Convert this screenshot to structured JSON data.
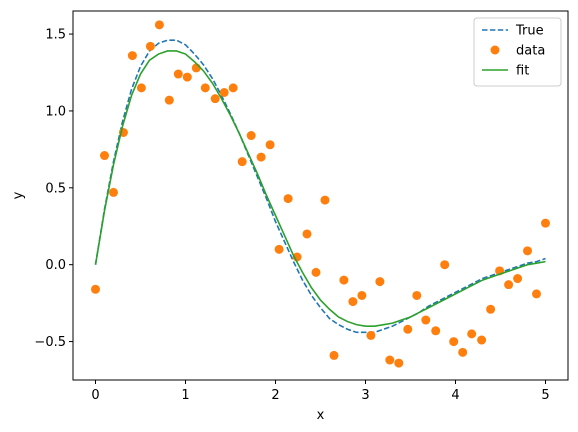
{
  "chart_data": {
    "type": "line",
    "title": "",
    "xlabel": "x",
    "ylabel": "y",
    "xlim": [
      -0.25,
      5.25
    ],
    "ylim": [
      -0.75,
      1.65
    ],
    "xticks": [
      0,
      1,
      2,
      3,
      4,
      5
    ],
    "xtick_labels": [
      "0",
      "1",
      "2",
      "3",
      "4",
      "5"
    ],
    "yticks": [
      -0.5,
      0.0,
      0.5,
      1.0,
      1.5
    ],
    "ytick_labels": [
      "−0.5",
      "0.0",
      "0.5",
      "1.0",
      "1.5"
    ],
    "grid": false,
    "legend_position": "top-right",
    "series": [
      {
        "name": "True",
        "style": "dashed-line",
        "color": "#1f77b4",
        "x": [
          0,
          0.1,
          0.2,
          0.3,
          0.4,
          0.5,
          0.6,
          0.7,
          0.8,
          0.9,
          1.0,
          1.1,
          1.2,
          1.3,
          1.4,
          1.5,
          1.6,
          1.7,
          1.8,
          1.9,
          2.0,
          2.1,
          2.2,
          2.3,
          2.4,
          2.5,
          2.6,
          2.7,
          2.8,
          2.9,
          3.0,
          3.1,
          3.2,
          3.3,
          3.4,
          3.5,
          3.6,
          3.7,
          3.8,
          3.9,
          4.0,
          4.1,
          4.2,
          4.3,
          4.4,
          4.5,
          4.6,
          4.7,
          4.8,
          4.9,
          5.0
        ],
        "y": [
          0.0,
          0.36,
          0.67,
          0.93,
          1.14,
          1.29,
          1.39,
          1.44,
          1.46,
          1.46,
          1.43,
          1.37,
          1.3,
          1.21,
          1.1,
          0.98,
          0.85,
          0.71,
          0.57,
          0.43,
          0.28,
          0.15,
          0.02,
          -0.1,
          -0.2,
          -0.28,
          -0.35,
          -0.39,
          -0.42,
          -0.44,
          -0.44,
          -0.44,
          -0.42,
          -0.4,
          -0.37,
          -0.34,
          -0.31,
          -0.27,
          -0.24,
          -0.21,
          -0.18,
          -0.15,
          -0.12,
          -0.09,
          -0.07,
          -0.05,
          -0.03,
          -0.01,
          0.01,
          0.02,
          0.04
        ]
      },
      {
        "name": "data",
        "style": "scatter",
        "color": "#ff7f0e",
        "x": [
          0.0,
          0.1,
          0.2,
          0.31,
          0.41,
          0.51,
          0.61,
          0.71,
          0.82,
          0.92,
          1.02,
          1.12,
          1.22,
          1.33,
          1.43,
          1.53,
          1.63,
          1.73,
          1.84,
          1.94,
          2.04,
          2.14,
          2.24,
          2.35,
          2.45,
          2.55,
          2.65,
          2.76,
          2.86,
          2.96,
          3.06,
          3.16,
          3.27,
          3.37,
          3.47,
          3.57,
          3.67,
          3.78,
          3.88,
          3.98,
          4.08,
          4.18,
          4.29,
          4.39,
          4.49,
          4.59,
          4.69,
          4.8,
          4.9,
          5.0
        ],
        "y": [
          -0.16,
          0.71,
          0.47,
          0.86,
          1.36,
          1.15,
          1.42,
          1.56,
          1.07,
          1.24,
          1.22,
          1.28,
          1.15,
          1.08,
          1.12,
          1.15,
          0.67,
          0.84,
          0.7,
          0.78,
          0.1,
          0.43,
          0.05,
          0.2,
          -0.05,
          0.42,
          -0.59,
          -0.1,
          -0.24,
          -0.2,
          -0.46,
          -0.11,
          -0.62,
          -0.64,
          -0.42,
          -0.2,
          -0.36,
          -0.43,
          0.0,
          -0.5,
          -0.57,
          -0.45,
          -0.49,
          -0.29,
          -0.04,
          -0.13,
          -0.09,
          0.09,
          -0.19,
          0.27
        ]
      },
      {
        "name": "fit",
        "style": "solid-line",
        "color": "#2ca02c",
        "x": [
          0,
          0.1,
          0.2,
          0.3,
          0.4,
          0.5,
          0.6,
          0.7,
          0.8,
          0.9,
          1.0,
          1.1,
          1.2,
          1.3,
          1.4,
          1.5,
          1.6,
          1.7,
          1.8,
          1.9,
          2.0,
          2.1,
          2.2,
          2.3,
          2.4,
          2.5,
          2.6,
          2.7,
          2.8,
          2.9,
          3.0,
          3.1,
          3.2,
          3.3,
          3.4,
          3.5,
          3.6,
          3.7,
          3.8,
          3.9,
          4.0,
          4.1,
          4.2,
          4.3,
          4.4,
          4.5,
          4.6,
          4.7,
          4.8,
          4.9,
          5.0
        ],
        "y": [
          0.0,
          0.35,
          0.65,
          0.9,
          1.1,
          1.24,
          1.33,
          1.37,
          1.39,
          1.39,
          1.37,
          1.32,
          1.26,
          1.18,
          1.08,
          0.97,
          0.85,
          0.72,
          0.59,
          0.45,
          0.32,
          0.19,
          0.06,
          -0.05,
          -0.15,
          -0.23,
          -0.29,
          -0.34,
          -0.37,
          -0.39,
          -0.4,
          -0.4,
          -0.39,
          -0.38,
          -0.36,
          -0.34,
          -0.31,
          -0.28,
          -0.25,
          -0.22,
          -0.19,
          -0.16,
          -0.13,
          -0.1,
          -0.08,
          -0.06,
          -0.04,
          -0.02,
          0.0,
          0.01,
          0.02
        ]
      }
    ]
  }
}
